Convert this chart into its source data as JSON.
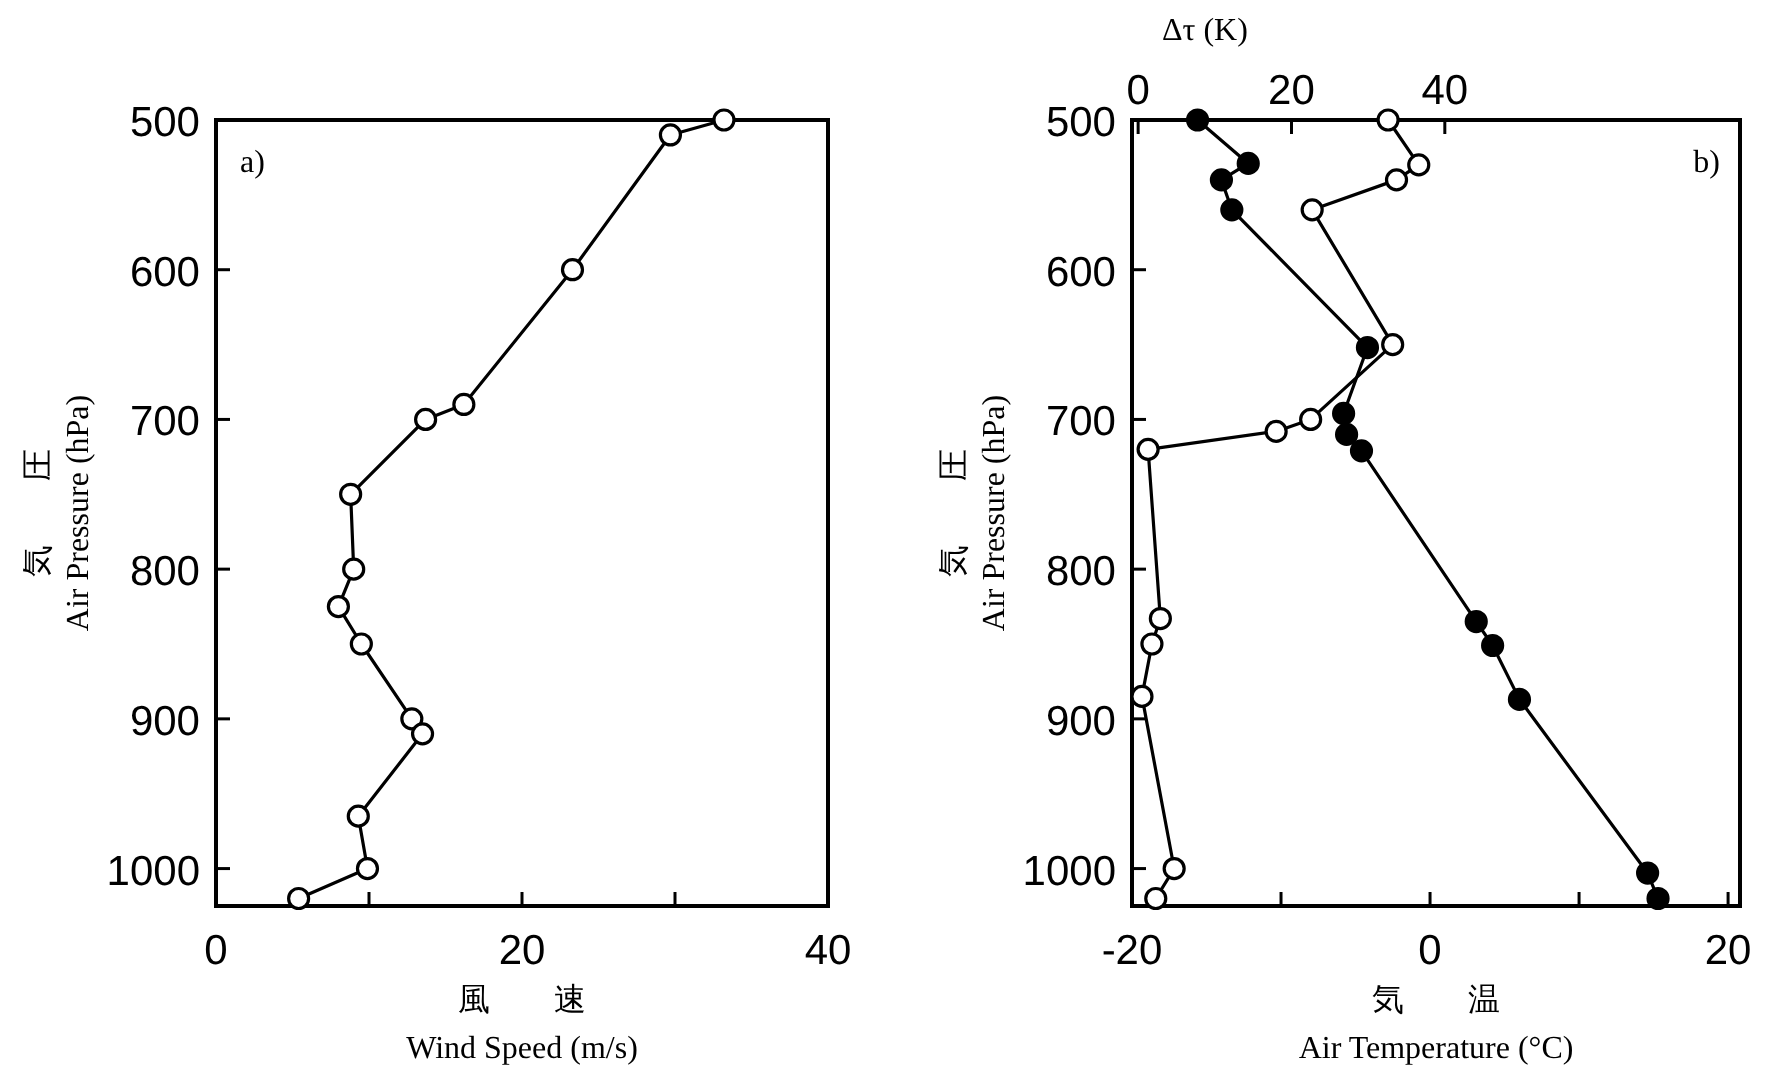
{
  "chart_data": [
    {
      "type": "line",
      "xlabel": "風　　速\nWind Speed (m/s)",
      "ylabel": "気　　圧\nAir Pressure (hPa)",
      "annotations": [
        "a)"
      ],
      "xlim": [
        0,
        40
      ],
      "xticks": [
        0,
        {
          "value": 10,
          "label": null
        },
        20,
        {
          "value": 30,
          "label": null
        },
        40
      ],
      "ylim": [
        1025,
        500
      ],
      "yticks": [
        500,
        600,
        700,
        800,
        900,
        1000
      ],
      "marker": "circle",
      "grid": false,
      "series": [
        {
          "color": "#ffffff",
          "x": [
            33.2,
            29.7,
            23.3,
            16.2,
            13.7,
            8.8,
            9.0,
            8.0,
            9.5,
            12.8,
            13.5,
            9.3,
            9.9,
            5.4
          ],
          "values": [
            500,
            510,
            600,
            690,
            700,
            750,
            800,
            825,
            850,
            900,
            910,
            965,
            1000,
            1020
          ]
        }
      ]
    },
    {
      "type": "line",
      "xlabel": "気　　温\nAir Temperature (°C)",
      "ylabel": "気　　圧\nAir Pressure (hPa)",
      "x2label": "Δτ (K)",
      "annotations": [
        "b)"
      ],
      "xlim": [
        -20,
        20.8
      ],
      "xticks": [
        -20,
        {
          "value": -10,
          "label": null
        },
        0,
        {
          "value": 10,
          "label": null
        },
        20
      ],
      "x2lim": [
        -0.8,
        78.5
      ],
      "x2ticks": [
        0,
        20,
        40
      ],
      "ylim": [
        1025,
        500
      ],
      "yticks": [
        500,
        600,
        700,
        800,
        900,
        1000
      ],
      "marker": "circle",
      "grid": false,
      "series": [
        {
          "color": "#000000",
          "x": [
            -15.6,
            -12.2,
            -14.0,
            -13.3,
            -4.2,
            -5.8,
            -5.6,
            -4.6,
            3.1,
            4.2,
            6.0,
            14.6,
            15.3
          ],
          "values": [
            500,
            529,
            540,
            560,
            652,
            696,
            710,
            721,
            835,
            851,
            887,
            1003,
            1020
          ]
        },
        {
          "color": "#ffffff",
          "axis": "x2",
          "x": [
            32.6,
            36.6,
            33.7,
            22.7,
            33.2,
            22.5,
            18.0,
            1.3,
            2.9,
            1.8,
            0.5,
            4.7,
            2.3
          ],
          "values": [
            500,
            530,
            540,
            560,
            650,
            700,
            708,
            720,
            833,
            850,
            885,
            1000,
            1020
          ]
        }
      ]
    }
  ]
}
